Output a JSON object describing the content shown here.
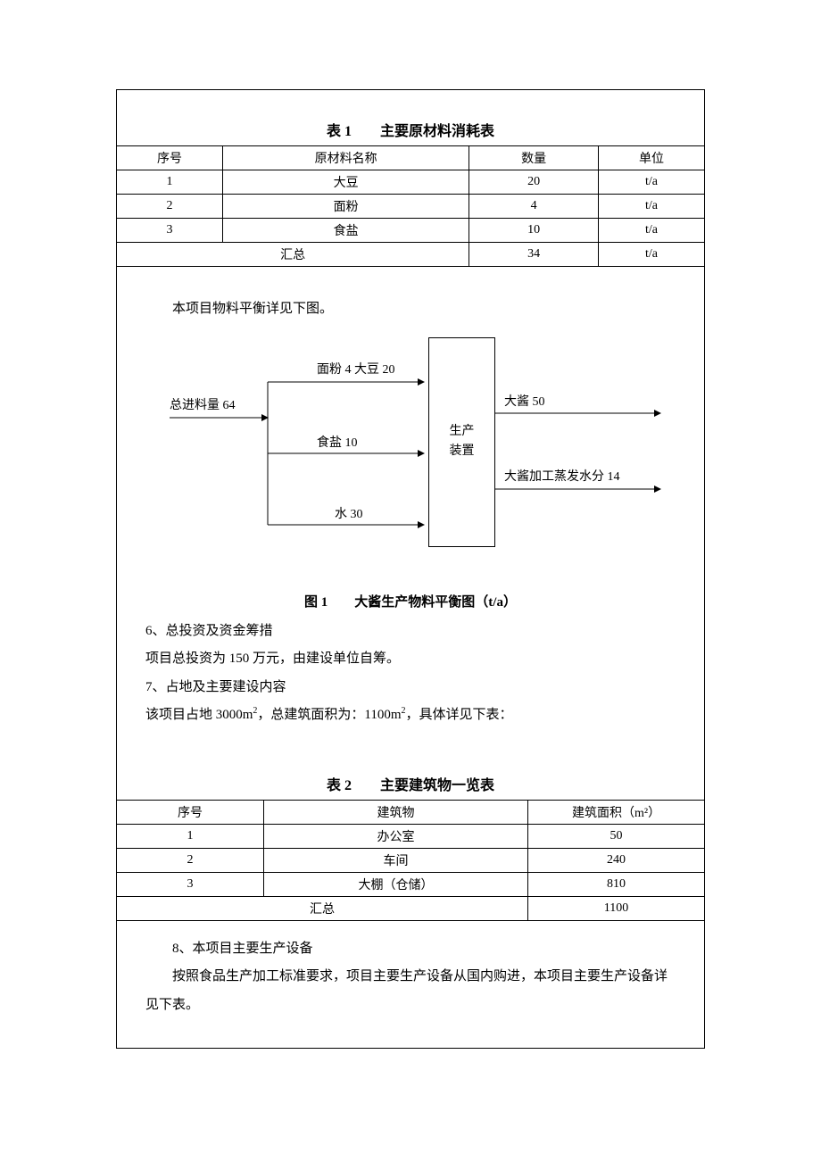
{
  "table1": {
    "title": "表 1　　主要原材料消耗表",
    "columns": [
      "序号",
      "原材料名称",
      "数量",
      "单位"
    ],
    "col_widths": [
      "18%",
      "42%",
      "22%",
      "18%"
    ],
    "rows": [
      [
        "1",
        "大豆",
        "20",
        "t/a"
      ],
      [
        "2",
        "面粉",
        "4",
        "t/a"
      ],
      [
        "3",
        "食盐",
        "10",
        "t/a"
      ]
    ],
    "total_row": [
      "汇总",
      "34",
      "t/a"
    ],
    "total_colspan": 2
  },
  "para_intro": "本项目物料平衡详见下图。",
  "diagram": {
    "input_total_label": "总进料量 64",
    "flour_soy_label": "面粉 4 大豆 20",
    "salt_label": "食盐 10",
    "water_label": "水 30",
    "process_box": "生产装置",
    "output1_label": "大酱 50",
    "output2_label": "大酱加工蒸发水分 14",
    "caption": "图 1　　大酱生产物料平衡图（t/a）",
    "style": {
      "line_color": "#000000",
      "line_width": 1,
      "arrow_size": 8,
      "box_border": "#000000",
      "font_size": 14
    }
  },
  "para_6_heading": "6、总投资及资金筹措",
  "para_6_body": "项目总投资为 150 万元，由建设单位自筹。",
  "para_7_heading": "7、占地及主要建设内容",
  "para_7_body_pre": "该项目占地 3000m",
  "para_7_body_mid": "，总建筑面积为：1100m",
  "para_7_body_post": "，具体详见下表：",
  "table2": {
    "title": "表 2　　主要建筑物一览表",
    "columns": [
      "序号",
      "建筑物",
      "建筑面积（m²）"
    ],
    "col_widths": [
      "25%",
      "45%",
      "30%"
    ],
    "rows": [
      [
        "1",
        "办公室",
        "50"
      ],
      [
        "2",
        "车间",
        "240"
      ],
      [
        "3",
        "大棚（仓储）",
        "810"
      ]
    ],
    "total_row": [
      "汇总",
      "1100"
    ],
    "total_colspan": 2
  },
  "para_8_heading": "8、本项目主要生产设备",
  "para_8_body": "按照食品生产加工标准要求，项目主要生产设备从国内购进，本项目主要生产设备详见下表。"
}
